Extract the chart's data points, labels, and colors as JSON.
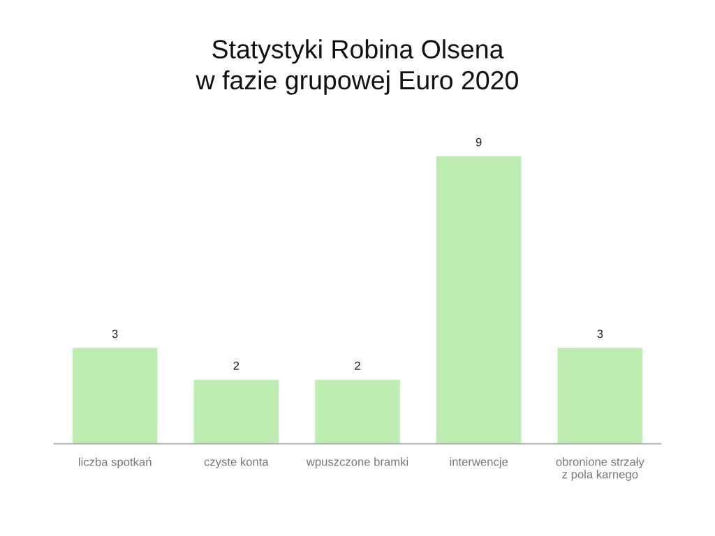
{
  "chart_data": {
    "type": "bar",
    "title": "Statystyki Robina Olsena\nw fazie grupowej Euro 2020",
    "categories": [
      "liczba spotkań",
      "czyste konta",
      "wpuszczone bramki",
      "interwencje",
      "obronione strzały\nz pola karnego"
    ],
    "values": [
      3,
      2,
      2,
      9,
      3
    ],
    "color": "#bdedb0",
    "data_labels": true,
    "grid": false,
    "legend": false
  }
}
